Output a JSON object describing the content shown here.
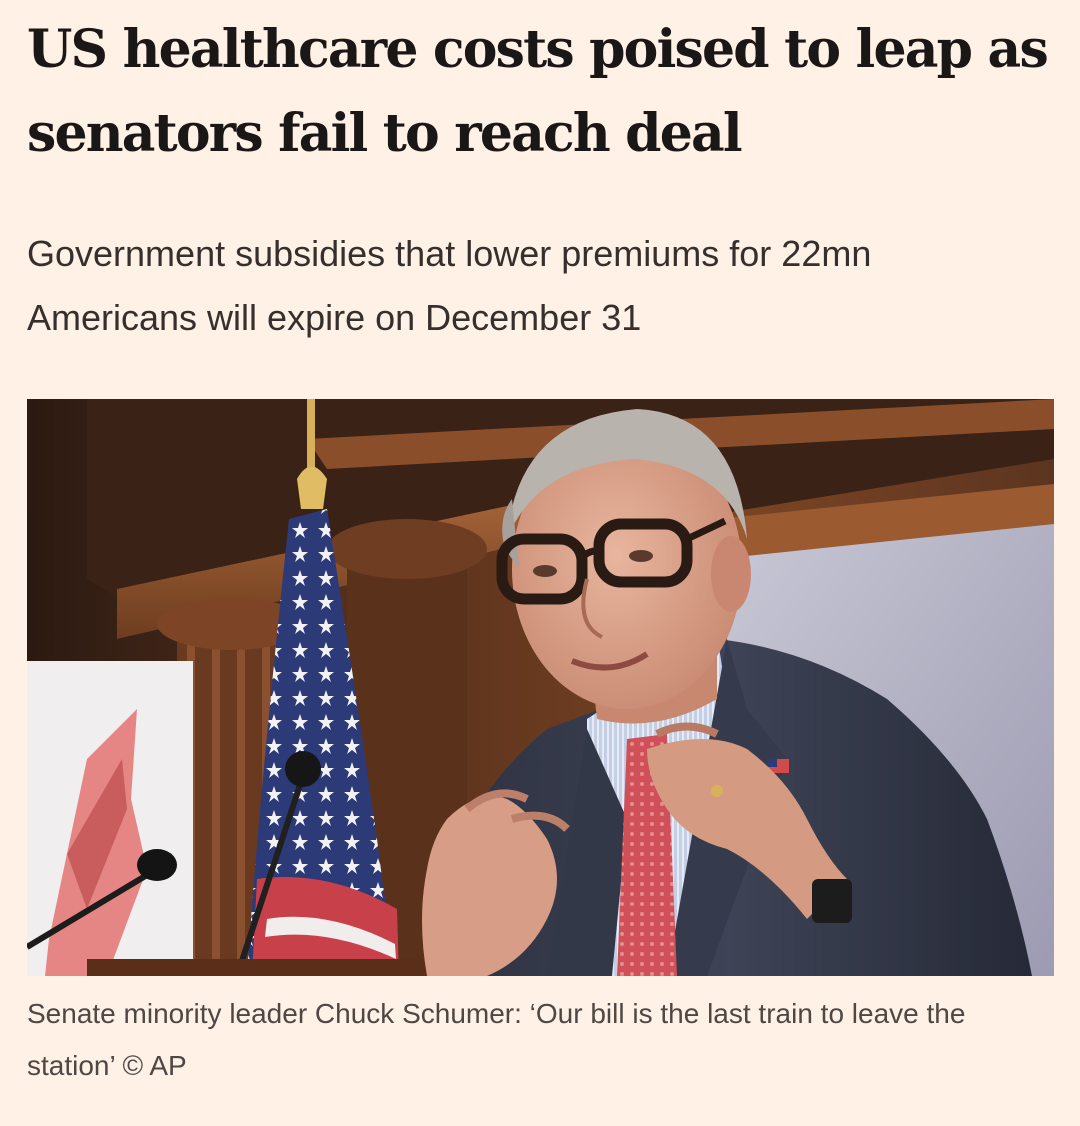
{
  "article": {
    "headline": "US healthcare costs poised to leap as senators fail to reach deal",
    "standfirst": "Government subsidies that lower premiums for 22mn Americans will expire on December 31",
    "image": {
      "subject": "senate-minority-leader-speaking-photo"
    },
    "caption": "Senate minority leader Chuck Schumer: ‘Our bill is the last train to leave the station’ © AP"
  },
  "colors": {
    "page_background": "#fff1e5",
    "headline_text": "#1a1817",
    "standfirst_text": "#33302e",
    "caption_text": "#4d4845"
  }
}
